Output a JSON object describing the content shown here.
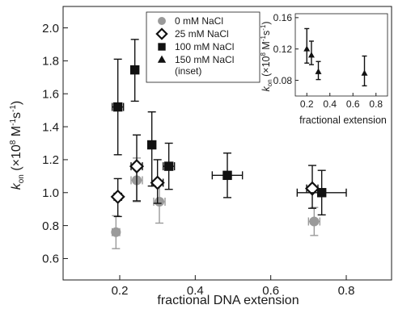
{
  "chart_data": [
    {
      "id": "main",
      "type": "scatter",
      "xlabel": "fractional DNA extension",
      "ylabel": {
        "main": "k",
        "sub": "on",
        "unit": " (×10",
        "exp": "8",
        "unit2": " M",
        "exp2": "-1",
        "unit3": "s",
        "exp3": "-1",
        "close": ")"
      },
      "xlim": [
        0.05,
        0.92
      ],
      "ylim": [
        0.47,
        2.13
      ],
      "xticks": [
        0.2,
        0.4,
        0.6,
        0.8
      ],
      "xtick_labels": [
        "0.2",
        "0.4",
        "0.6",
        "0.8"
      ],
      "yticks": [
        0.6,
        0.8,
        1.0,
        1.2,
        1.4,
        1.6,
        1.8,
        2.0
      ],
      "ytick_labels": [
        "0.6",
        "0.8",
        "1.0",
        "1.2",
        "1.4",
        "1.6",
        "1.8",
        "2.0"
      ],
      "grid": false,
      "legend_position": "top-center",
      "series": [
        {
          "name": "0 mM NaCl",
          "marker": "circle",
          "color": "#9a9a9a",
          "points": [
            {
              "x": 0.19,
              "y": 0.76,
              "xerr": 0.01,
              "yerr_low": 0.1,
              "yerr_high": 0.1
            },
            {
              "x": 0.245,
              "y": 1.075,
              "xerr": 0.015,
              "yerr_low": 0.13,
              "yerr_high": 0.135
            },
            {
              "x": 0.305,
              "y": 0.945,
              "xerr": 0.015,
              "yerr_low": 0.13,
              "yerr_high": 0.1
            },
            {
              "x": 0.715,
              "y": 0.825,
              "xerr": 0.015,
              "yerr_low": 0.085,
              "yerr_high": 0.085
            }
          ]
        },
        {
          "name": "25 mM NaCl",
          "marker": "diamond",
          "color": "#111111",
          "points": [
            {
              "x": 0.195,
              "y": 0.975,
              "xerr": 0.01,
              "yerr_low": 0.12,
              "yerr_high": 0.11
            },
            {
              "x": 0.245,
              "y": 1.16,
              "xerr": 0.015,
              "yerr_low": 0.21,
              "yerr_high": 0.19
            },
            {
              "x": 0.3,
              "y": 1.06,
              "xerr": 0.015,
              "yerr_low": 0.125,
              "yerr_high": 0.14
            },
            {
              "x": 0.71,
              "y": 1.025,
              "xerr": 0.015,
              "yerr_low": 0.12,
              "yerr_high": 0.14
            }
          ]
        },
        {
          "name": "100 mM NaCl",
          "marker": "square",
          "color": "#111111",
          "points": [
            {
              "x": 0.195,
              "y": 1.52,
              "xerr": 0.015,
              "yerr_low": 0.29,
              "yerr_high": 0.29
            },
            {
              "x": 0.24,
              "y": 1.745,
              "xerr": 0.01,
              "yerr_low": 0.19,
              "yerr_high": 0.185
            },
            {
              "x": 0.285,
              "y": 1.29,
              "xerr": 0.01,
              "yerr_low": 0.25,
              "yerr_high": 0.2
            },
            {
              "x": 0.33,
              "y": 1.16,
              "xerr": 0.015,
              "yerr_low": 0.14,
              "yerr_high": 0.14
            },
            {
              "x": 0.485,
              "y": 1.105,
              "xerr": 0.04,
              "yerr_low": 0.135,
              "yerr_high": 0.135
            },
            {
              "x": 0.735,
              "y": 1.0,
              "xerr": 0.065,
              "yerr_low": 0.135,
              "yerr_high": 0.135
            }
          ]
        }
      ],
      "legend_entries": [
        {
          "label": "0 mM NaCl",
          "marker": "circle",
          "color": "#9a9a9a"
        },
        {
          "label": "25 mM NaCl",
          "marker": "diamond",
          "color": "#111111"
        },
        {
          "label": "100 mM NaCl",
          "marker": "square",
          "color": "#111111"
        },
        {
          "label": "150 mM NaCl",
          "sublabel": "(inset)",
          "marker": "triangle",
          "color": "#111111"
        }
      ]
    },
    {
      "id": "inset",
      "type": "scatter",
      "xlabel": "fractional extension",
      "ylabel": {
        "main": "k",
        "sub": "on",
        "unit": " (×10",
        "exp": "8",
        "unit2": " M",
        "exp2": "-1",
        "unit3": "s",
        "exp3": "-1",
        "close": ")"
      },
      "xlim": [
        0.1,
        0.9
      ],
      "ylim": [
        0.06,
        0.165
      ],
      "xticks": [
        0.2,
        0.4,
        0.6,
        0.8
      ],
      "xtick_labels": [
        "0.2",
        "0.4",
        "0.6",
        "0.8"
      ],
      "yticks": [
        0.08,
        0.12,
        0.16
      ],
      "ytick_labels": [
        "0.08",
        "0.12",
        "0.16"
      ],
      "series": [
        {
          "name": "150 mM NaCl",
          "marker": "triangle",
          "color": "#111111",
          "points": [
            {
              "x": 0.2,
              "y": 0.12,
              "xerr": 0.0,
              "yerr_low": 0.018,
              "yerr_high": 0.026
            },
            {
              "x": 0.24,
              "y": 0.112,
              "xerr": 0.0,
              "yerr_low": 0.012,
              "yerr_high": 0.018
            },
            {
              "x": 0.3,
              "y": 0.091,
              "xerr": 0.0,
              "yerr_low": 0.01,
              "yerr_high": 0.013
            },
            {
              "x": 0.7,
              "y": 0.089,
              "xerr": 0.0,
              "yerr_low": 0.016,
              "yerr_high": 0.022
            }
          ]
        }
      ]
    }
  ]
}
